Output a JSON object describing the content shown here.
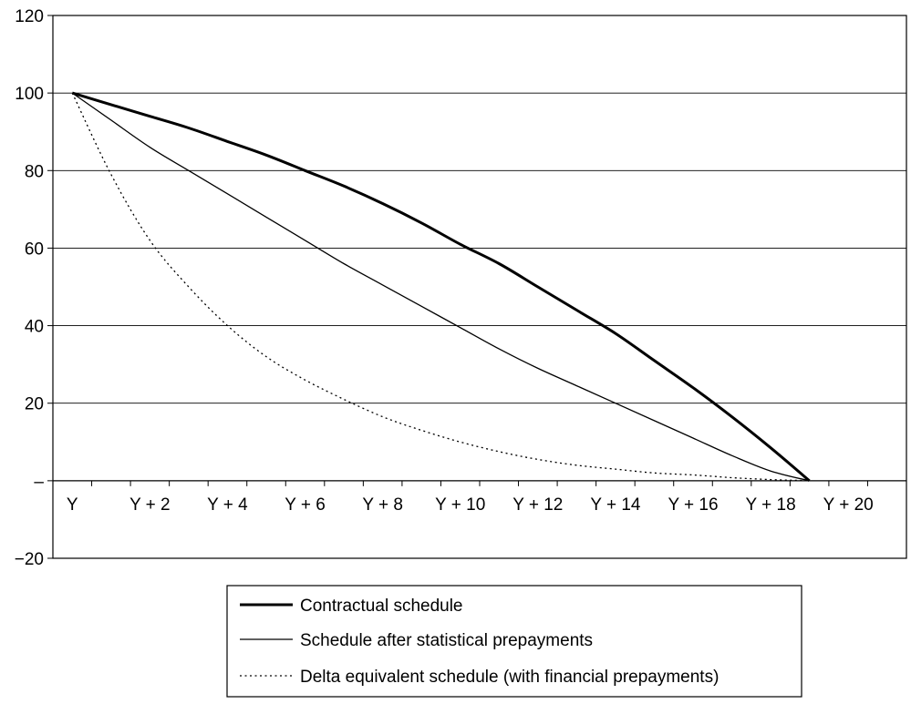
{
  "chart_data": {
    "type": "line",
    "title": "",
    "xlabel": "",
    "ylabel": "",
    "x": [
      0,
      1,
      2,
      3,
      4,
      5,
      6,
      7,
      8,
      9,
      10,
      11,
      12,
      13,
      14,
      15,
      16,
      17,
      18,
      19,
      20
    ],
    "x_tick_labels": [
      "Y",
      "Y + 2",
      "Y + 4",
      "Y + 6",
      "Y + 8",
      "Y + 10",
      "Y + 12",
      "Y + 14",
      "Y + 16",
      "Y + 18",
      "Y + 20"
    ],
    "x_tick_positions": [
      0,
      2,
      4,
      6,
      8,
      10,
      12,
      14,
      16,
      18,
      20
    ],
    "xlim": [
      -0.5,
      21.5
    ],
    "ylim": [
      -20,
      120
    ],
    "y_ticks": [
      -20,
      0,
      20,
      40,
      60,
      80,
      100,
      120
    ],
    "y_tick_labels": [
      "−20",
      "–",
      "20",
      "40",
      "60",
      "80",
      "100",
      "120"
    ],
    "grid": "horizontal",
    "legend_position": "bottom",
    "series": [
      {
        "name": "Contractual schedule",
        "style": "thick",
        "color": "#000000",
        "values": [
          100,
          97,
          94,
          91,
          87.5,
          84,
          80,
          76,
          71.5,
          66.5,
          61,
          56,
          50,
          44,
          38,
          31,
          24,
          16.5,
          8.5,
          0,
          null
        ]
      },
      {
        "name": "Schedule after statistical prepayments",
        "style": "thin",
        "color": "#000000",
        "values": [
          100,
          93,
          86,
          80,
          74,
          68,
          62,
          56,
          50.5,
          45,
          39.5,
          34,
          29,
          24.5,
          20,
          15.5,
          11,
          6.5,
          2.5,
          0,
          null
        ]
      },
      {
        "name": "Delta equivalent schedule (with financial prepayments)",
        "style": "dotted",
        "color": "#000000",
        "values": [
          100,
          79,
          62,
          50,
          40,
          32,
          26,
          21,
          16.5,
          13,
          10,
          7.5,
          5.5,
          4,
          3,
          2,
          1.5,
          0.8,
          0.3,
          0,
          null
        ]
      }
    ]
  }
}
